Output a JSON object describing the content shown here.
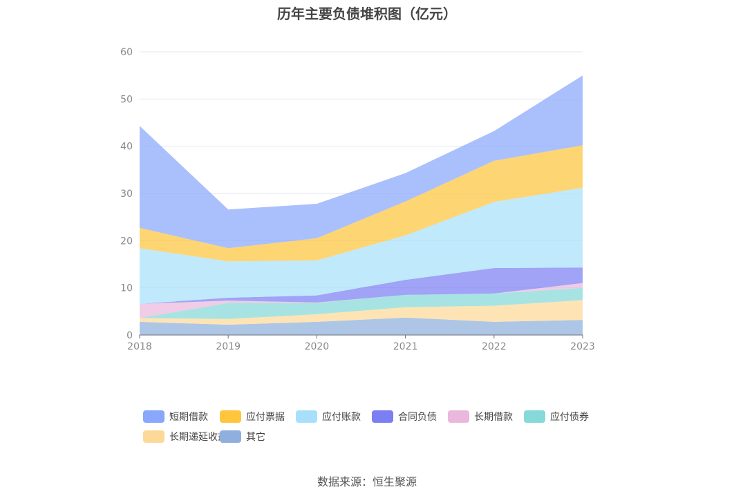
{
  "chart_data": {
    "type": "area",
    "stacked": true,
    "title": "历年主要负债堆积图（亿元）",
    "x": [
      "2018",
      "2019",
      "2020",
      "2021",
      "2022",
      "2023"
    ],
    "ylim": [
      0,
      60
    ],
    "yticks": [
      "0",
      "10",
      "20",
      "30",
      "40",
      "50",
      "60"
    ],
    "grid": true,
    "legend_position": "bottom",
    "series": [
      {
        "name": "其它",
        "color": "#8fb0dc",
        "values": [
          2.8,
          2.2,
          2.8,
          3.7,
          2.8,
          3.2
        ]
      },
      {
        "name": "长期递延收益",
        "color": "#fdd999",
        "values": [
          0.8,
          1.2,
          1.6,
          2.2,
          3.4,
          4.2
        ]
      },
      {
        "name": "应付债券",
        "color": "#87d8d8",
        "values": [
          0,
          3.4,
          2.4,
          2.6,
          2.6,
          2.6
        ]
      },
      {
        "name": "长期借款",
        "color": "#eab8dc",
        "values": [
          3.0,
          0.5,
          0.1,
          0,
          0,
          1.0
        ]
      },
      {
        "name": "合同负债",
        "color": "#7b7ff2",
        "values": [
          0,
          0.6,
          1.5,
          3.2,
          5.4,
          3.3
        ]
      },
      {
        "name": "应付账款",
        "color": "#a8e0fb",
        "values": [
          11.8,
          7.7,
          7.4,
          9.4,
          14.0,
          16.9
        ]
      },
      {
        "name": "应付票据",
        "color": "#fec53d",
        "values": [
          4.3,
          2.8,
          4.7,
          7.2,
          8.7,
          9.0
        ]
      },
      {
        "name": "短期借款",
        "color": "#89a7fb",
        "values": [
          21.6,
          8.2,
          7.3,
          6.0,
          6.3,
          14.8
        ]
      }
    ],
    "legend_order": [
      "短期借款",
      "应付票据",
      "应付账款",
      "合同负债",
      "长期借款",
      "应付债券",
      "长期递延收益",
      "其它"
    ]
  },
  "source": "数据来源：恒生聚源"
}
